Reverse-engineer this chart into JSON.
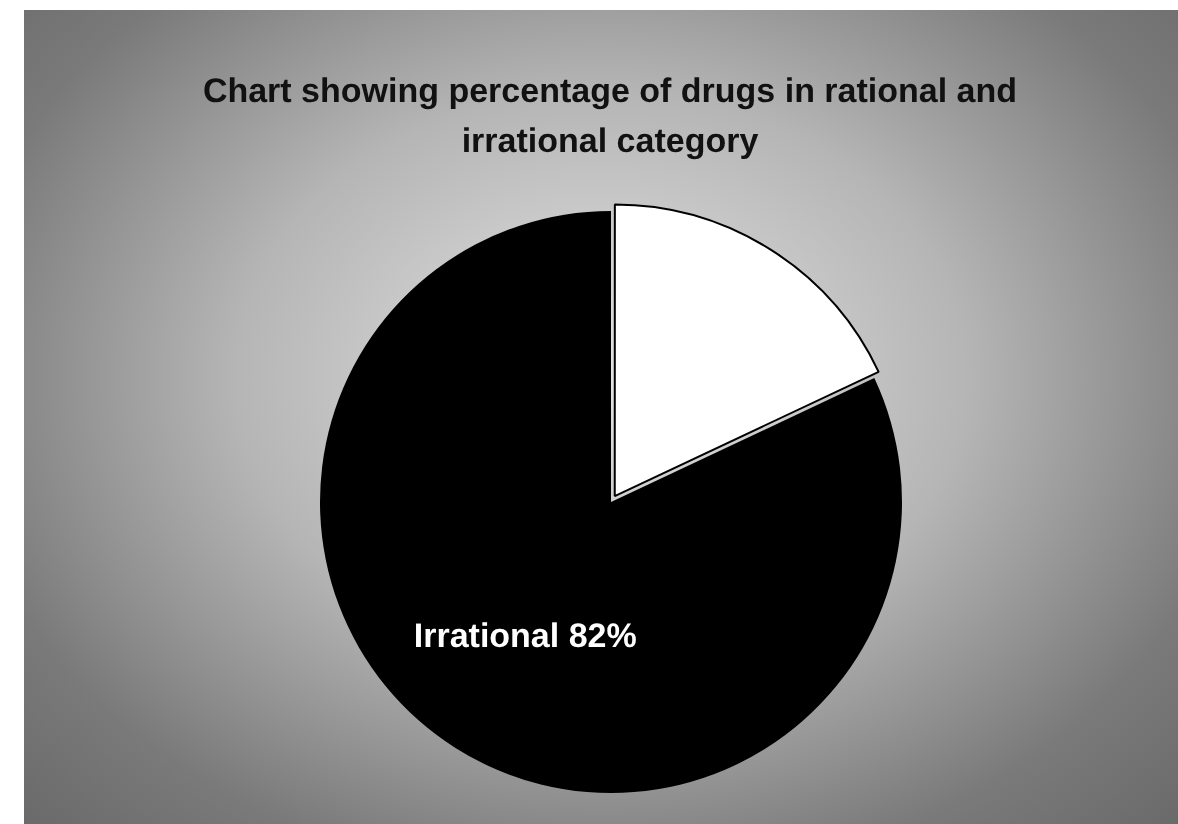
{
  "chart_data": {
    "type": "pie",
    "title": "Chart showing percentage of drugs in rational and irrational category",
    "categories": [
      null,
      "Irrational"
    ],
    "values": [
      18,
      82
    ],
    "colors": [
      "#ffffff",
      "#000000"
    ],
    "value_labels": [
      null,
      "82%"
    ],
    "legend": false
  }
}
